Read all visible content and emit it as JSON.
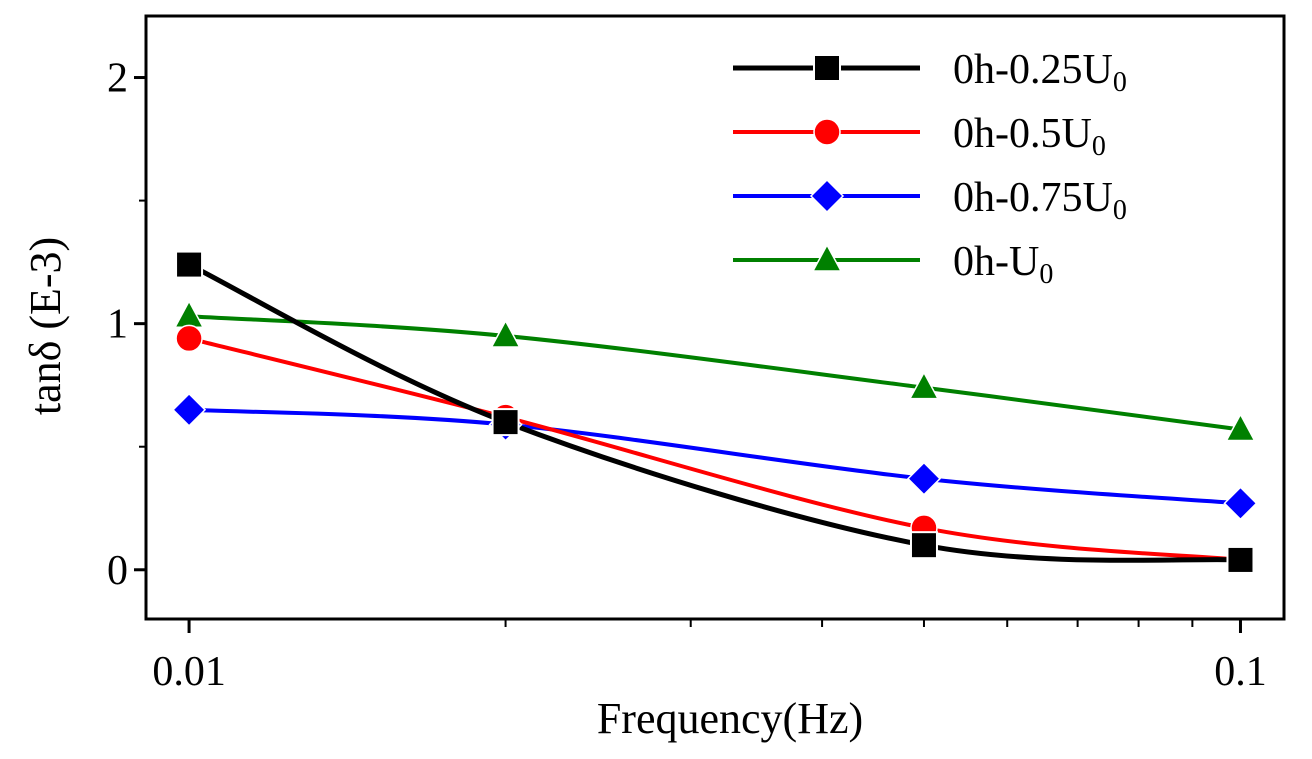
{
  "chart_data": {
    "type": "line",
    "x_scale": "log",
    "xlabel": "Frequency(Hz)",
    "ylabel": "tanδ (E-3)",
    "xlim": [
      0.0091,
      0.11
    ],
    "ylim": [
      -0.2,
      2.25
    ],
    "x_ticks": [
      {
        "value": 0.01,
        "label": "0.01"
      },
      {
        "value": 0.1,
        "label": "0.1"
      }
    ],
    "y_ticks": [
      {
        "value": 0,
        "label": "0"
      },
      {
        "value": 1,
        "label": "1"
      },
      {
        "value": 2,
        "label": "2"
      }
    ],
    "legend_position": "top-right",
    "series": [
      {
        "name": "0h-0.25U",
        "subscript": "0",
        "color": "#000000",
        "marker": "square",
        "x": [
          0.01,
          0.02,
          0.05,
          0.1
        ],
        "y": [
          1.24,
          0.6,
          0.1,
          0.04
        ]
      },
      {
        "name": "0h-0.5U",
        "subscript": "0",
        "color": "#ff0000",
        "marker": "circle",
        "x": [
          0.01,
          0.02,
          0.05,
          0.1
        ],
        "y": [
          0.94,
          0.62,
          0.17,
          0.04
        ]
      },
      {
        "name": "0h-0.75U",
        "subscript": "0",
        "color": "#0000ff",
        "marker": "diamond",
        "x": [
          0.01,
          0.02,
          0.05,
          0.1
        ],
        "y": [
          0.65,
          0.59,
          0.37,
          0.27
        ]
      },
      {
        "name": "0h-U",
        "subscript": "0",
        "color": "#008000",
        "marker": "triangle",
        "x": [
          0.01,
          0.02,
          0.05,
          0.1
        ],
        "y": [
          1.03,
          0.95,
          0.74,
          0.57
        ]
      }
    ]
  }
}
